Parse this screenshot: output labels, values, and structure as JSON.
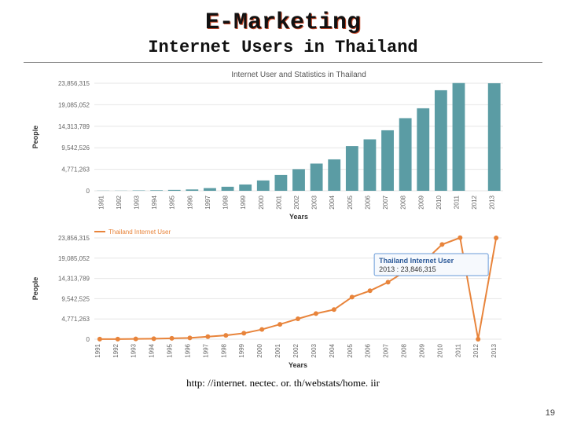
{
  "heading": "E-Marketing",
  "subheading": "Internet Users in Thailand",
  "source_url": "http: //internet. nectec. or. th/webstats/home. iir",
  "page_number": "19",
  "years": [
    "1991",
    "1992",
    "1993",
    "1994",
    "1995",
    "1996",
    "1997",
    "1998",
    "1999",
    "2000",
    "2001",
    "2002",
    "2003",
    "2004",
    "2005",
    "2006",
    "2007",
    "2008",
    "2009",
    "2010",
    "2011",
    "2012",
    "2013"
  ],
  "y_ticks": [
    "0",
    "4,771,263",
    "9,542,526",
    "14,313,789",
    "19,085,052",
    "23,856,315"
  ],
  "y_ticks_line": [
    "0",
    "4,771,263",
    "9,542,525",
    "14,313,789",
    "19,085,052",
    "23,856,315"
  ],
  "values": [
    30,
    30,
    80,
    120,
    200,
    300,
    600,
    900,
    1400,
    2300,
    3500,
    4800,
    6030,
    6970,
    9910,
    11410,
    13420,
    16110,
    18300,
    22300,
    23900,
    0,
    23850
  ],
  "values_line": [
    30,
    30,
    80,
    120,
    200,
    300,
    600,
    900,
    1400,
    2300,
    3500,
    4800,
    6030,
    6970,
    9910,
    11410,
    13420,
    16110,
    18300,
    22300,
    23900,
    0,
    23850
  ],
  "y_max": 23856,
  "bar_chart": {
    "title": "Internet User and Statistics in Thailand",
    "x_label": "Years",
    "y_label": "People",
    "bar_color": "#5b9ca4",
    "grid_color": "#e6e6e6",
    "text_color": "#666666",
    "title_color": "#555555",
    "font_size": 8,
    "title_fontsize": 10,
    "bg": "#ffffff"
  },
  "line_chart": {
    "x_label": "Years",
    "y_label": "People",
    "series_name": "Thailand Internet User",
    "line_color": "#e8843b",
    "marker_color": "#e8843b",
    "grid_color": "#e6e6e6",
    "text_color": "#666666",
    "font_size": 8,
    "bg": "#ffffff",
    "tooltip": {
      "line1": "Thailand Internet User",
      "line2": "2013 : 23,846,315",
      "border": "#6a9bd8",
      "bg": "#f6f9fd",
      "text1_color": "#2c5a99",
      "text2_color": "#333333"
    }
  }
}
